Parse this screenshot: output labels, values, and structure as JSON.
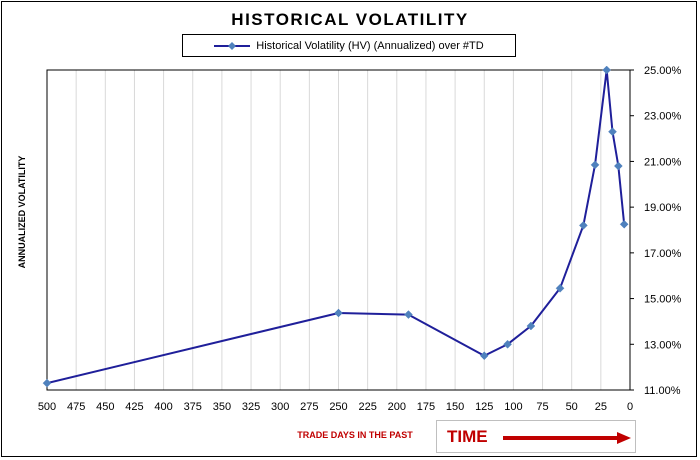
{
  "chart_data": {
    "type": "line",
    "title": "HISTORICAL VOLATILITY",
    "xlabel": "TRADE DAYS IN THE PAST",
    "ylabel": "ANNUALIZED VOLATILITY",
    "x_reversed": true,
    "xlim": [
      0,
      500
    ],
    "ylim": [
      0.11,
      0.25
    ],
    "x_ticks": [
      500,
      475,
      450,
      425,
      400,
      375,
      350,
      325,
      300,
      275,
      250,
      225,
      200,
      175,
      150,
      125,
      100,
      75,
      50,
      25,
      0
    ],
    "y_ticks": [
      "11.00%",
      "13.00%",
      "15.00%",
      "17.00%",
      "19.00%",
      "21.00%",
      "23.00%",
      "25.00%"
    ],
    "y_tick_values": [
      0.11,
      0.13,
      0.15,
      0.17,
      0.19,
      0.21,
      0.23,
      0.25
    ],
    "y_axis_side": "right",
    "grid": true,
    "legend_position": "top",
    "series": [
      {
        "name": "Historical Volatility (HV) (Annualized) over #TD",
        "color": "#1f1f9a",
        "marker_color": "#4f81bd",
        "x": [
          500,
          250,
          190,
          125,
          105,
          85,
          60,
          40,
          30,
          20,
          15,
          10,
          5
        ],
        "y": [
          0.113,
          0.1437,
          0.143,
          0.125,
          0.13,
          0.138,
          0.1545,
          0.182,
          0.2085,
          0.25,
          0.223,
          0.208,
          0.1825
        ]
      }
    ]
  },
  "annotation": {
    "time_label": "TIME",
    "arrow_color": "#c00000"
  }
}
